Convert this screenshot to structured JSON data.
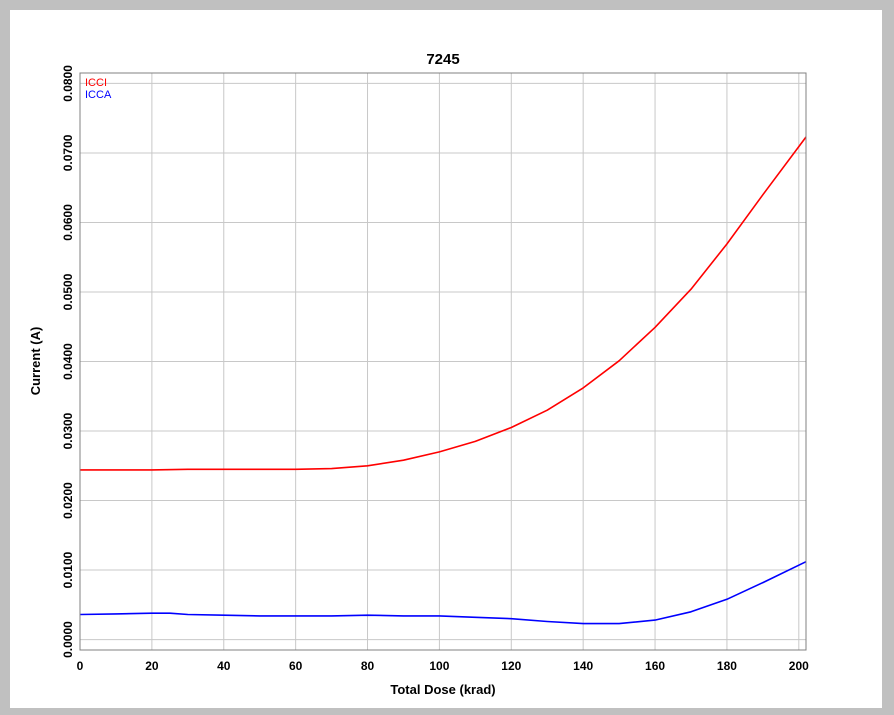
{
  "chart_data": {
    "type": "line",
    "title": "7245",
    "xlabel": "Total Dose (krad)",
    "ylabel": "Current (A)",
    "xlim": [
      0,
      202
    ],
    "ylim": [
      -0.0015,
      0.0815
    ],
    "grid": true,
    "legend_placement": "top-left",
    "x_ticks": [
      0,
      20,
      40,
      60,
      80,
      100,
      120,
      140,
      160,
      180,
      200
    ],
    "x_tick_labels": [
      "0",
      "20",
      "40",
      "60",
      "80",
      "100",
      "120",
      "140",
      "160",
      "180",
      "200"
    ],
    "y_ticks": [
      0,
      0.01,
      0.02,
      0.03,
      0.04,
      0.05,
      0.06,
      0.07,
      0.08
    ],
    "y_tick_labels": [
      "0.0000",
      "0.0100",
      "0.0200",
      "0.0300",
      "0.0400",
      "0.0500",
      "0.0600",
      "0.0700",
      "0.0800"
    ],
    "series": [
      {
        "name": "ICCI",
        "color": "#ff0000",
        "x": [
          0,
          10,
          20,
          30,
          40,
          50,
          60,
          70,
          80,
          90,
          100,
          110,
          120,
          130,
          140,
          150,
          160,
          170,
          180,
          190,
          202
        ],
        "y": [
          0.0244,
          0.0244,
          0.0244,
          0.0245,
          0.0245,
          0.0245,
          0.0245,
          0.0246,
          0.025,
          0.0258,
          0.027,
          0.0285,
          0.0305,
          0.033,
          0.0362,
          0.0401,
          0.0449,
          0.0504,
          0.0569,
          0.064,
          0.0723
        ]
      },
      {
        "name": "ICCA",
        "color": "#0000ff",
        "x": [
          0,
          10,
          20,
          25,
          30,
          40,
          50,
          60,
          70,
          80,
          90,
          100,
          110,
          120,
          130,
          140,
          150,
          160,
          170,
          180,
          190,
          202
        ],
        "y": [
          0.0036,
          0.0037,
          0.0038,
          0.0038,
          0.0036,
          0.0035,
          0.0034,
          0.0034,
          0.0034,
          0.0035,
          0.0034,
          0.0034,
          0.0032,
          0.003,
          0.0026,
          0.0023,
          0.0023,
          0.0028,
          0.004,
          0.0058,
          0.0082,
          0.0112
        ]
      }
    ]
  }
}
